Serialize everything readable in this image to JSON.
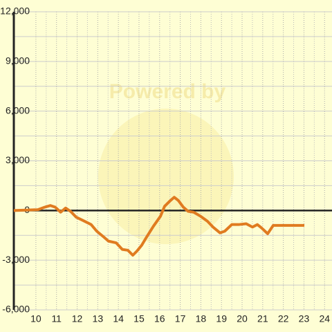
{
  "chart_data": {
    "type": "line",
    "watermark": "Powered by",
    "x": [
      8.93,
      10.1,
      10.43,
      10.7,
      10.94,
      11.2,
      11.44,
      11.68,
      11.95,
      12.28,
      12.68,
      12.95,
      13.29,
      13.52,
      13.89,
      14.19,
      14.46,
      14.7,
      14.9,
      15.13,
      15.37,
      15.7,
      16.04,
      16.24,
      16.48,
      16.71,
      16.91,
      17.15,
      17.38,
      17.65,
      17.99,
      18.32,
      18.59,
      18.93,
      19.16,
      19.5,
      19.83,
      20.2,
      20.5,
      20.74,
      20.94,
      21.24,
      21.51,
      21.85,
      23.02
    ],
    "series": [
      {
        "color": "#e07b20",
        "values": [
          0,
          50,
          200,
          300,
          200,
          -100,
          150,
          -50,
          -400,
          -600,
          -850,
          -1250,
          -1600,
          -1850,
          -1950,
          -2350,
          -2400,
          -2700,
          -2450,
          -2100,
          -1600,
          -950,
          -350,
          250,
          550,
          800,
          600,
          200,
          -50,
          -100,
          -350,
          -650,
          -1000,
          -1350,
          -1250,
          -850,
          -850,
          -800,
          -1000,
          -850,
          -1050,
          -1400,
          -900,
          -900,
          -900
        ]
      }
    ],
    "xlim": [
      8.93,
      24.36
    ],
    "xticks": [
      10,
      11,
      12,
      13,
      14,
      15,
      16,
      17,
      18,
      19,
      20,
      21,
      22,
      23,
      24
    ],
    "ylim": [
      -6000,
      12000
    ],
    "yticks": [
      {
        "value": -6000,
        "label": "-6,000"
      },
      {
        "value": -3000,
        "label": "-3,000"
      },
      0,
      {
        "value": 3000,
        "label": "3,000"
      },
      {
        "value": 6000,
        "label": "6,000"
      },
      {
        "value": 9000,
        "label": "9,000"
      },
      {
        "value": 12000,
        "label": "12,000"
      }
    ],
    "grid": true
  }
}
